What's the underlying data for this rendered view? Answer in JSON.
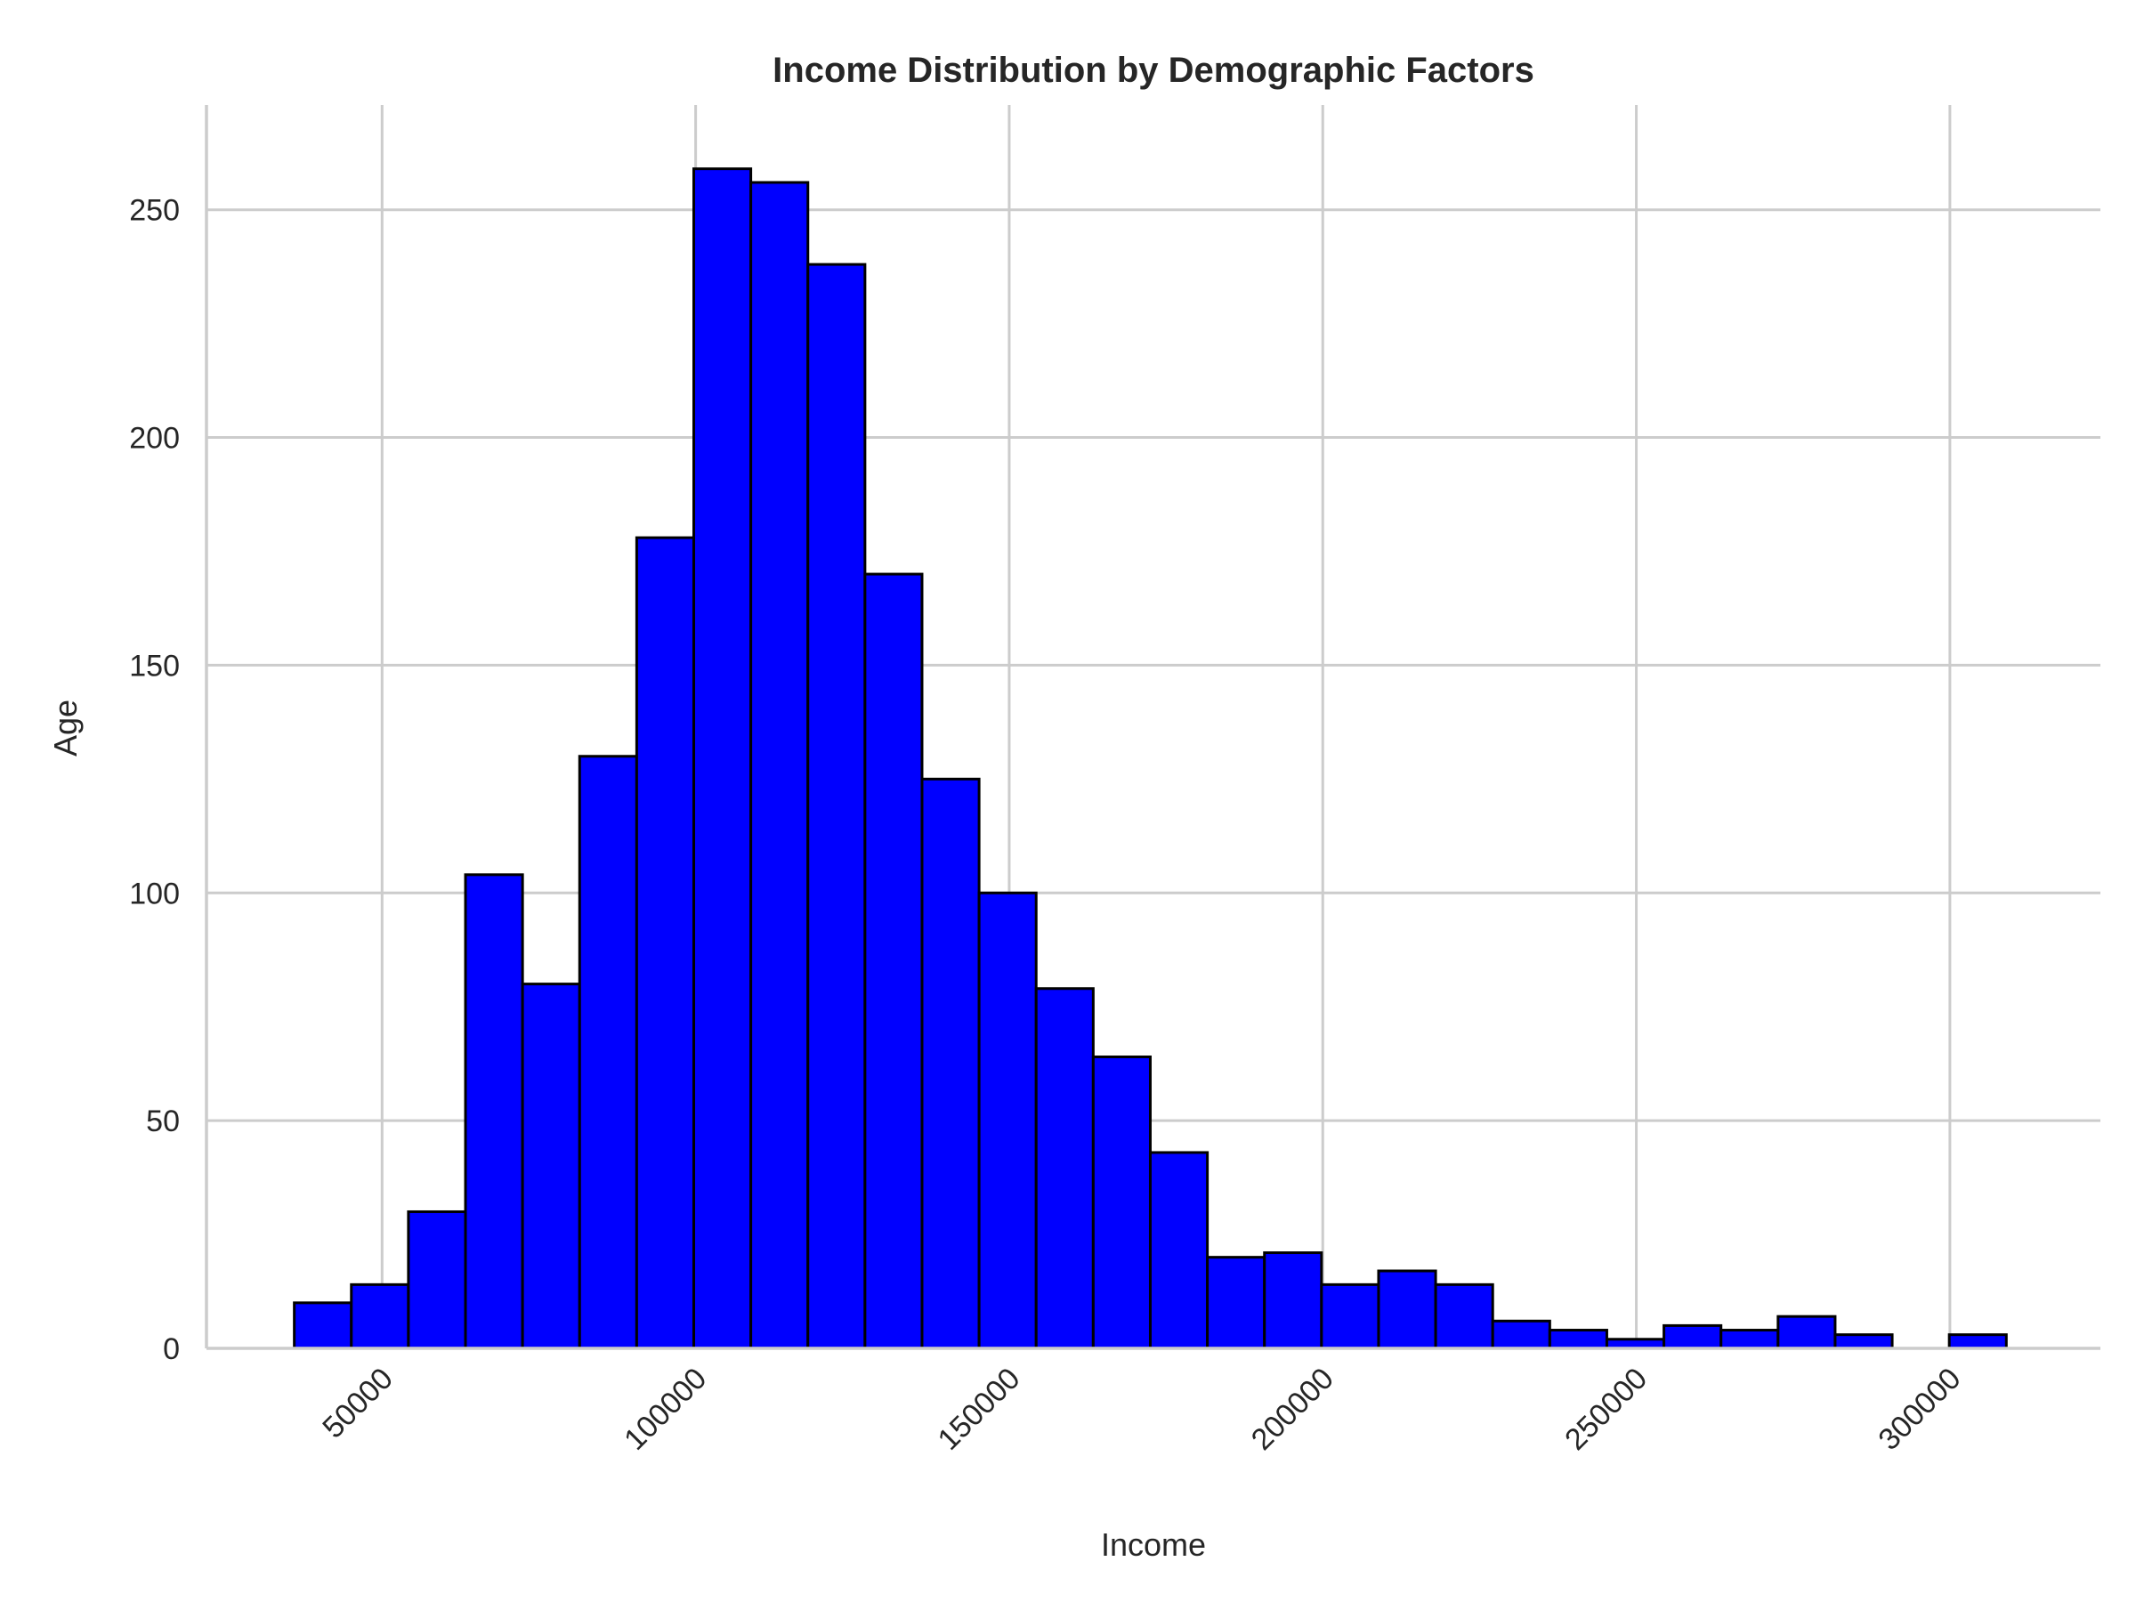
{
  "chart_data": {
    "type": "bar",
    "title": "Income Distribution by Demographic Factors",
    "xlabel": "Income",
    "ylabel": "Age",
    "xlim": [
      22000,
      324000
    ],
    "ylim": [
      0,
      273
    ],
    "x_ticks": [
      50000,
      100000,
      150000,
      200000,
      250000,
      300000
    ],
    "x_tick_labels": [
      "50000",
      "100000",
      "150000",
      "200000",
      "250000",
      "300000"
    ],
    "y_ticks": [
      0,
      50,
      100,
      150,
      200,
      250
    ],
    "y_tick_labels": [
      "0",
      "50",
      "100",
      "150",
      "200",
      "250"
    ],
    "grid": true,
    "legend": "none",
    "bin_start": 36000,
    "bin_width": 9100,
    "values": [
      10,
      14,
      30,
      104,
      80,
      130,
      178,
      259,
      256,
      238,
      170,
      125,
      100,
      79,
      64,
      43,
      20,
      21,
      14,
      17,
      14,
      6,
      4,
      2,
      5,
      4,
      7,
      3,
      0,
      3
    ],
    "colors": {
      "bar_fill": "#0000ff",
      "bar_edge": "#000000",
      "grid": "#cccccc",
      "text": "#262626"
    }
  }
}
